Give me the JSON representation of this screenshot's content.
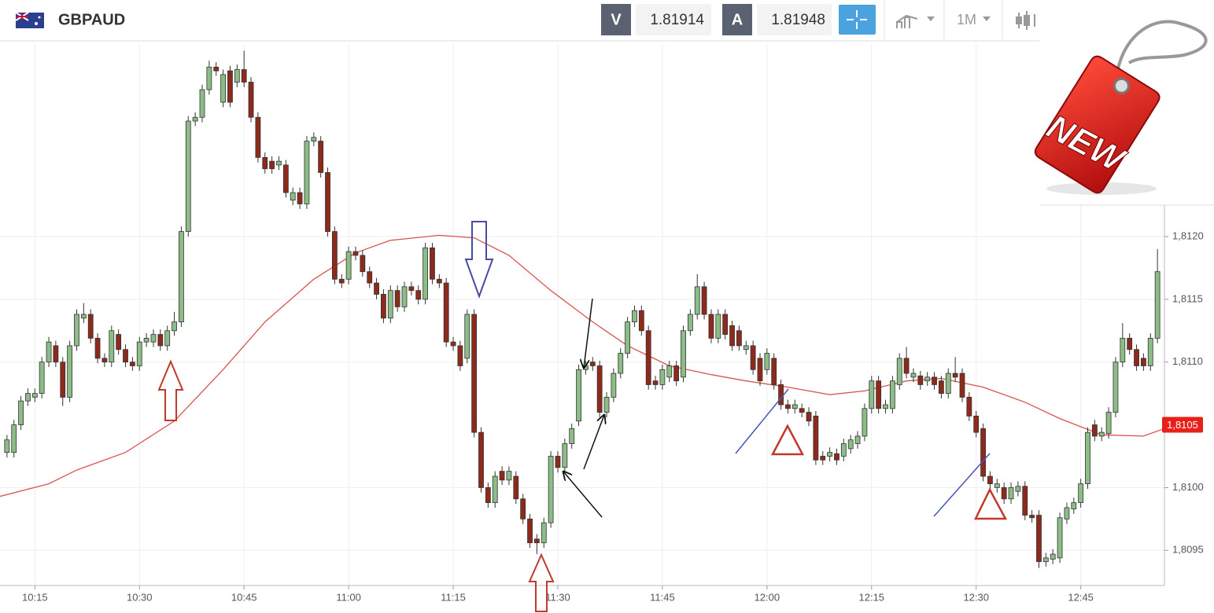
{
  "header": {
    "symbol": "GBPAUD",
    "bid_label": "V",
    "bid": 1.81914,
    "ask_label": "A",
    "ask": 1.81948,
    "timeframe": "1M"
  },
  "badge": "NEW",
  "chart_data": {
    "type": "candlestick",
    "x": [
      "10:11",
      "10:12",
      "10:13",
      "10:14",
      "10:15",
      "10:16",
      "10:17",
      "10:18",
      "10:19",
      "10:20",
      "10:21",
      "10:22",
      "10:23",
      "10:24",
      "10:25",
      "10:26",
      "10:27",
      "10:28",
      "10:29",
      "10:30",
      "10:31",
      "10:32",
      "10:33",
      "10:34",
      "10:35",
      "10:36",
      "10:37",
      "10:38",
      "10:39",
      "10:40",
      "10:41",
      "10:42",
      "10:43",
      "10:44",
      "10:45",
      "10:46",
      "10:47",
      "10:48",
      "10:49",
      "10:50",
      "10:51",
      "10:52",
      "10:53",
      "10:54",
      "10:55",
      "10:56",
      "10:57",
      "10:58",
      "10:59",
      "11:00",
      "11:01",
      "11:02",
      "11:03",
      "11:04",
      "11:05",
      "11:06",
      "11:07",
      "11:08",
      "11:09",
      "11:10",
      "11:11",
      "11:12",
      "11:13",
      "11:14",
      "11:15",
      "11:16",
      "11:17",
      "11:18",
      "11:19",
      "11:20",
      "11:21",
      "11:22",
      "11:23",
      "11:24",
      "11:25",
      "11:26",
      "11:27",
      "11:28",
      "11:29",
      "11:30",
      "11:31",
      "11:32",
      "11:33",
      "11:34",
      "11:35",
      "11:36",
      "11:37",
      "11:38",
      "11:39",
      "11:40",
      "11:41",
      "11:42",
      "11:43",
      "11:44",
      "11:45",
      "11:46",
      "11:47",
      "11:48",
      "11:49",
      "11:50",
      "11:51",
      "11:52",
      "11:53",
      "11:54",
      "11:55",
      "11:56",
      "11:57",
      "11:58",
      "11:59",
      "12:00",
      "12:01",
      "12:02",
      "12:03",
      "12:04",
      "12:05",
      "12:06",
      "12:07",
      "12:08",
      "12:09",
      "12:10",
      "12:11",
      "12:12",
      "12:13",
      "12:14",
      "12:15",
      "12:16",
      "12:17",
      "12:18",
      "12:19",
      "12:20",
      "12:21",
      "12:22",
      "12:23",
      "12:24",
      "12:25",
      "12:26",
      "12:27",
      "12:28",
      "12:29",
      "12:30",
      "12:31",
      "12:32",
      "12:33",
      "12:34",
      "12:35",
      "12:36",
      "12:37",
      "12:38",
      "12:39",
      "12:40",
      "12:41",
      "12:42",
      "12:43",
      "12:44",
      "12:45",
      "12:46",
      "12:47",
      "12:48",
      "12:49",
      "12:50",
      "12:51",
      "12:52",
      "12:53",
      "12:54",
      "12:55",
      "12:56"
    ],
    "open": [
      1.81028,
      1.81028,
      1.8105,
      1.81069,
      1.81072,
      1.81075,
      1.811,
      1.81113,
      1.811,
      1.81072,
      1.81113,
      1.81135,
      1.81138,
      1.81119,
      1.81103,
      1.811,
      1.81122,
      1.8111,
      1.811,
      1.81097,
      1.81116,
      1.81116,
      1.81122,
      1.81113,
      1.81125,
      1.81132,
      1.81204,
      1.81292,
      1.81295,
      1.81317,
      1.81335,
      1.81307,
      1.81332,
      1.81323,
      1.81333,
      1.81323,
      1.81295,
      1.81263,
      1.8126,
      1.81257,
      1.81257,
      1.81229,
      1.81235,
      1.81226,
      1.81276,
      1.81276,
      1.81251,
      1.81204,
      1.81166,
      1.81166,
      1.81188,
      1.81185,
      1.81172,
      1.81163,
      1.81154,
      1.81135,
      1.81157,
      1.81144,
      1.8116,
      1.81157,
      1.8115,
      1.81191,
      1.81166,
      1.81163,
      1.81116,
      1.81113,
      1.81103,
      1.81138,
      1.81044,
      1.81,
      1.80988,
      1.81013,
      1.81006,
      1.81009,
      1.80991,
      1.80975,
      1.80959,
      1.80956,
      1.80972,
      1.81025,
      1.81016,
      1.81035,
      1.81053,
      1.81094,
      1.811,
      1.81097,
      1.8106,
      1.81072,
      1.81091,
      1.81107,
      1.81132,
      1.81141,
      1.81125,
      1.81085,
      1.81082,
      1.81088,
      1.81097,
      1.81088,
      1.81125,
      1.81138,
      1.8116,
      1.81138,
      1.81119,
      1.81138,
      1.81129,
      1.81125,
      1.8111,
      1.81113,
      1.81103,
      1.81094,
      1.81103,
      1.81082,
      1.81066,
      1.81063,
      1.81063,
      1.8106,
      1.81057,
      1.81025,
      1.81025,
      1.81027,
      1.81025,
      1.81031,
      1.81035,
      1.81041,
      1.81063,
      1.81085,
      1.81063,
      1.81063,
      1.81082,
      1.81103,
      1.81088,
      1.81089,
      1.81085,
      1.81088,
      1.81085,
      1.81075,
      1.81091,
      1.81091,
      1.81072,
      1.81057,
      1.81047,
      1.81009,
      1.81,
      1.81,
      1.80991,
      1.80997,
      1.81001,
      1.80978,
      1.80978,
      1.80941,
      1.80943,
      1.80944,
      1.80975,
      1.80983,
      1.80988,
      1.81003,
      1.8105,
      1.81041,
      1.81043,
      1.8106,
      1.811,
      1.81119,
      1.8111,
      1.81103,
      1.81097,
      1.81119
    ],
    "high": [
      1.81042,
      1.81054,
      1.81073,
      1.81079,
      1.81079,
      1.81104,
      1.8112,
      1.81117,
      1.81104,
      1.81117,
      1.81142,
      1.81147,
      1.81142,
      1.81123,
      1.81107,
      1.81129,
      1.81126,
      1.81114,
      1.81104,
      1.8112,
      1.81123,
      1.81126,
      1.81126,
      1.81129,
      1.8114,
      1.81208,
      1.81296,
      1.81299,
      1.81321,
      1.8134,
      1.81339,
      1.81333,
      1.81336,
      1.81337,
      1.81348,
      1.81327,
      1.81299,
      1.81267,
      1.81264,
      1.81264,
      1.81261,
      1.81239,
      1.81239,
      1.8128,
      1.81283,
      1.8128,
      1.81255,
      1.81208,
      1.8117,
      1.81192,
      1.81192,
      1.81189,
      1.81176,
      1.81167,
      1.81158,
      1.81161,
      1.81161,
      1.81164,
      1.81164,
      1.81161,
      1.81195,
      1.81195,
      1.8117,
      1.81167,
      1.8112,
      1.81117,
      1.81142,
      1.81142,
      1.81048,
      1.81004,
      1.81013,
      1.81017,
      1.81017,
      1.81013,
      1.80995,
      1.80979,
      1.80963,
      1.80976,
      1.81029,
      1.81029,
      1.81039,
      1.81051,
      1.81098,
      1.81101,
      1.81104,
      1.81101,
      1.81076,
      1.81095,
      1.81111,
      1.81136,
      1.81145,
      1.81145,
      1.81129,
      1.81089,
      1.81098,
      1.81101,
      1.81101,
      1.81129,
      1.81142,
      1.8117,
      1.81164,
      1.81142,
      1.81142,
      1.81142,
      1.81133,
      1.81129,
      1.81117,
      1.81117,
      1.81107,
      1.81111,
      1.81107,
      1.81086,
      1.8107,
      1.8107,
      1.81067,
      1.81064,
      1.81061,
      1.81029,
      1.81032,
      1.81031,
      1.81039,
      1.81042,
      1.81045,
      1.81067,
      1.81089,
      1.81089,
      1.8107,
      1.81089,
      1.81107,
      1.81112,
      1.81095,
      1.81093,
      1.81092,
      1.81092,
      1.81089,
      1.81095,
      1.81104,
      1.81095,
      1.81076,
      1.81061,
      1.81051,
      1.81013,
      1.81007,
      1.81004,
      1.81004,
      1.81005,
      1.81005,
      1.80982,
      1.80982,
      1.80948,
      1.80951,
      1.8098,
      1.80988,
      1.80992,
      1.81007,
      1.81048,
      1.81054,
      1.81048,
      1.81064,
      1.81104,
      1.81131,
      1.81123,
      1.81114,
      1.81107,
      1.81123,
      1.8119
    ],
    "low": [
      1.81024,
      1.81024,
      1.81046,
      1.81065,
      1.81068,
      1.81071,
      1.81096,
      1.81096,
      1.81065,
      1.81068,
      1.81109,
      1.81131,
      1.81115,
      1.81099,
      1.81096,
      1.81096,
      1.81106,
      1.81096,
      1.81093,
      1.81093,
      1.81112,
      1.81112,
      1.81109,
      1.81109,
      1.81121,
      1.81128,
      1.812,
      1.81288,
      1.81291,
      1.81313,
      1.81328,
      1.81303,
      1.81303,
      1.81319,
      1.81319,
      1.81291,
      1.81259,
      1.8125,
      1.8125,
      1.81253,
      1.81231,
      1.81225,
      1.81222,
      1.81222,
      1.81272,
      1.81247,
      1.812,
      1.81162,
      1.81159,
      1.81162,
      1.81181,
      1.81168,
      1.81159,
      1.8115,
      1.81131,
      1.81131,
      1.8114,
      1.8114,
      1.81153,
      1.81146,
      1.81146,
      1.81162,
      1.81159,
      1.81112,
      1.81109,
      1.81093,
      1.81099,
      1.8104,
      1.80996,
      1.80984,
      1.80984,
      1.81002,
      1.81002,
      1.80987,
      1.80971,
      1.80952,
      1.80947,
      1.80952,
      1.80968,
      1.81012,
      1.81012,
      1.81031,
      1.81049,
      1.8109,
      1.81093,
      1.81056,
      1.81056,
      1.81068,
      1.81087,
      1.81103,
      1.81128,
      1.81121,
      1.81078,
      1.81078,
      1.81078,
      1.81084,
      1.81081,
      1.81084,
      1.81121,
      1.81134,
      1.81134,
      1.81115,
      1.81115,
      1.81118,
      1.81109,
      1.81109,
      1.81106,
      1.8109,
      1.81081,
      1.8109,
      1.81078,
      1.81062,
      1.81059,
      1.81059,
      1.81056,
      1.81049,
      1.81018,
      1.81018,
      1.81021,
      1.81018,
      1.81021,
      1.81027,
      1.81031,
      1.81037,
      1.81059,
      1.81059,
      1.81059,
      1.81059,
      1.81078,
      1.81087,
      1.81084,
      1.81078,
      1.81081,
      1.81078,
      1.81071,
      1.81071,
      1.81084,
      1.81068,
      1.81053,
      1.8104,
      1.81005,
      1.80999,
      1.80996,
      1.80987,
      1.80987,
      1.80993,
      1.80974,
      1.80972,
      1.80936,
      1.80937,
      1.80939,
      1.8094,
      1.80971,
      1.80979,
      1.80984,
      1.80999,
      1.81037,
      1.81037,
      1.81039,
      1.81056,
      1.81096,
      1.81106,
      1.81093,
      1.81093,
      1.81093,
      1.81115
    ],
    "close": [
      1.81038,
      1.8105,
      1.81069,
      1.81075,
      1.81075,
      1.811,
      1.81116,
      1.811,
      1.81072,
      1.81113,
      1.81138,
      1.81138,
      1.81119,
      1.81103,
      1.811,
      1.81125,
      1.8111,
      1.811,
      1.81097,
      1.81116,
      1.81119,
      1.81122,
      1.81113,
      1.81125,
      1.81132,
      1.81204,
      1.81292,
      1.81295,
      1.81317,
      1.81335,
      1.81332,
      1.81329,
      1.81307,
      1.81333,
      1.81323,
      1.81295,
      1.81263,
      1.81254,
      1.81254,
      1.8126,
      1.81235,
      1.81235,
      1.81226,
      1.81276,
      1.81279,
      1.81251,
      1.81204,
      1.81166,
      1.81163,
      1.81188,
      1.81185,
      1.81172,
      1.81163,
      1.81154,
      1.81135,
      1.81157,
      1.81144,
      1.8116,
      1.81157,
      1.8115,
      1.81191,
      1.81166,
      1.81163,
      1.81116,
      1.81113,
      1.81097,
      1.81138,
      1.81044,
      1.81,
      1.80988,
      1.81009,
      1.81006,
      1.81013,
      1.80991,
      1.80975,
      1.80956,
      1.80956,
      1.80972,
      1.81025,
      1.81016,
      1.81035,
      1.81047,
      1.81094,
      1.81097,
      1.81097,
      1.8106,
      1.81072,
      1.81091,
      1.81107,
      1.81132,
      1.81141,
      1.81125,
      1.81082,
      1.81082,
      1.81094,
      1.81097,
      1.81085,
      1.81125,
      1.81138,
      1.8116,
      1.81138,
      1.81119,
      1.81138,
      1.81122,
      1.81113,
      1.81113,
      1.81113,
      1.81094,
      1.81085,
      1.81107,
      1.81082,
      1.81066,
      1.81063,
      1.81066,
      1.8106,
      1.81053,
      1.81022,
      1.81022,
      1.81028,
      1.81022,
      1.81035,
      1.81038,
      1.81041,
      1.81063,
      1.81085,
      1.81063,
      1.81066,
      1.81085,
      1.81103,
      1.81091,
      1.81091,
      1.81082,
      1.81088,
      1.81082,
      1.81075,
      1.81091,
      1.81088,
      1.81072,
      1.81057,
      1.81044,
      1.81009,
      1.81003,
      1.81003,
      1.80991,
      1.81,
      1.81001,
      1.80978,
      1.80976,
      1.80941,
      1.80944,
      1.80947,
      1.80976,
      1.80984,
      1.80988,
      1.81003,
      1.81044,
      1.81041,
      1.81044,
      1.8106,
      1.811,
      1.81119,
      1.8111,
      1.81097,
      1.81097,
      1.81119,
      1.81172
    ],
    "up_color": "#8dbd86",
    "down_color": "#8e2a1b",
    "moving_average": {
      "color": "#d9534f",
      "x": [
        "10:10",
        "10:17",
        "10:21",
        "10:28",
        "10:35",
        "10:42",
        "10:48",
        "10:55",
        "11:01",
        "11:06",
        "11:13",
        "11:18",
        "11:23",
        "11:29",
        "11:35",
        "11:40",
        "11:46",
        "11:52",
        "11:57",
        "12:03",
        "12:09",
        "12:14",
        "12:20",
        "12:25",
        "12:31",
        "12:37",
        "12:42",
        "12:48",
        "12:54",
        "12:57"
      ],
      "values": [
        1.80993,
        1.81003,
        1.81014,
        1.81028,
        1.81053,
        1.81094,
        1.81132,
        1.81166,
        1.81187,
        1.81197,
        1.81201,
        1.81199,
        1.81185,
        1.81157,
        1.81132,
        1.81113,
        1.81097,
        1.8109,
        1.81085,
        1.8108,
        1.81074,
        1.81077,
        1.81085,
        1.81087,
        1.8108,
        1.81068,
        1.81055,
        1.81042,
        1.81041,
        1.81047
      ]
    },
    "xlim": [
      "10:10",
      "12:57"
    ],
    "xticks": [
      "10:15",
      "10:30",
      "10:45",
      "11:00",
      "11:15",
      "11:30",
      "11:45",
      "12:00",
      "12:15",
      "12:30",
      "12:45"
    ],
    "ylim": [
      1.80922,
      1.81354
    ],
    "yticks": [
      {
        "value": 1.8095,
        "label": "1,8095"
      },
      {
        "value": 1.81,
        "label": "1,8100"
      },
      {
        "value": 1.811,
        "label": "1,8110"
      },
      {
        "value": 1.8115,
        "label": "1,8115"
      },
      {
        "value": 1.812,
        "label": "1,8120"
      }
    ],
    "grid": true,
    "price_tag": {
      "value": 1.8105,
      "label": "1,8105"
    },
    "price_tag_color": "#e8201a"
  }
}
